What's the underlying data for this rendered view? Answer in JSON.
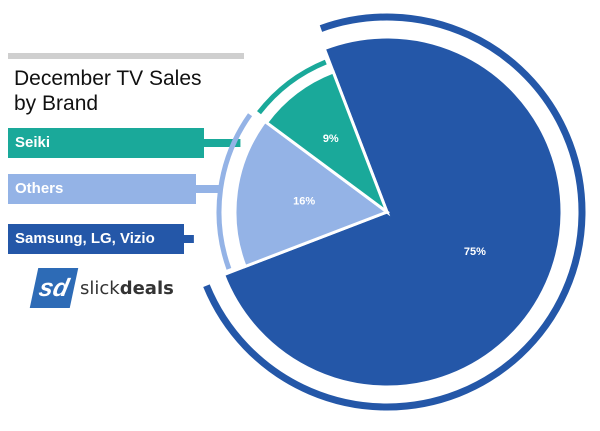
{
  "chart_data": {
    "type": "pie",
    "title": "December TV Sales by Brand",
    "title_lines": [
      "December TV Sales",
      "by Brand"
    ],
    "slices": [
      {
        "label": "Samsung, LG, Vizio",
        "value": 75,
        "display": "75%",
        "color": "#2457a8"
      },
      {
        "label": "Others",
        "value": 16,
        "display": "16%",
        "color": "#94b3e6"
      },
      {
        "label": "Seiki",
        "value": 9,
        "display": "9%",
        "color": "#1aa99a"
      }
    ],
    "legend": [
      {
        "label": "Seiki",
        "color": "#1aa99a"
      },
      {
        "label": "Others",
        "color": "#94b3e6"
      },
      {
        "label": "Samsung, LG, Vizio",
        "color": "#2457a8"
      }
    ],
    "legend_placement": "left"
  },
  "brand": {
    "logo_mark": "sd",
    "logo_text_light": "slick",
    "logo_text_bold": "deals",
    "color": "#2d6bb6"
  }
}
